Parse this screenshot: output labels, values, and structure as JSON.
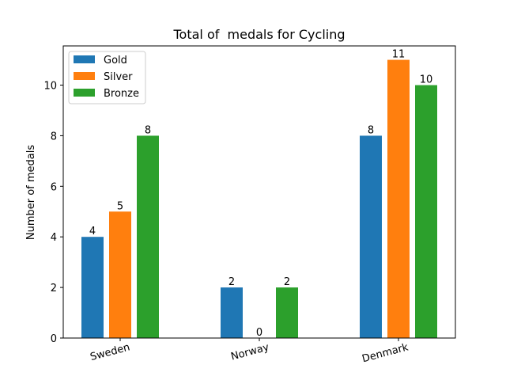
{
  "chart_data": {
    "type": "bar",
    "title": "Total of  medals for Cycling",
    "xlabel": "",
    "ylabel": "Number of medals",
    "categories": [
      "Sweden",
      "Norway",
      "Denmark"
    ],
    "series": [
      {
        "name": "Gold",
        "values": [
          4,
          2,
          8
        ],
        "color": "#1f77b4"
      },
      {
        "name": "Silver",
        "values": [
          5,
          0,
          11
        ],
        "color": "#ff7f0e"
      },
      {
        "name": "Bronze",
        "values": [
          8,
          2,
          10
        ],
        "color": "#2ca02c"
      }
    ],
    "ylim": [
      0,
      11.55
    ],
    "yticks": [
      0,
      2,
      4,
      6,
      8,
      10
    ],
    "legend": "top-left",
    "grid": false
  }
}
